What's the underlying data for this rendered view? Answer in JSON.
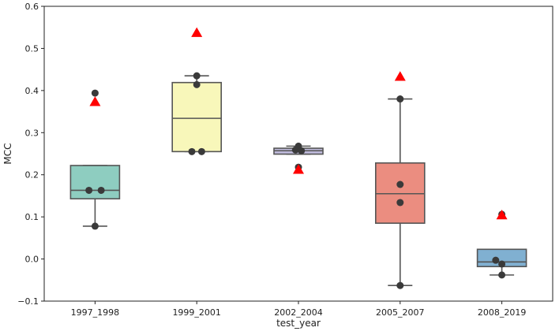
{
  "chart_data": {
    "type": "box",
    "xlabel": "test_year",
    "ylabel": "MCC",
    "ylim": [
      -0.1,
      0.6
    ],
    "yticks": [
      "−0.1",
      "0.0",
      "0.1",
      "0.2",
      "0.3",
      "0.4",
      "0.5",
      "0.6"
    ],
    "categories": [
      "1997_1998",
      "1999_2001",
      "2002_2004",
      "2005_2007",
      "2008_2019"
    ],
    "boxes": [
      {
        "category": "1997_1998",
        "color": "#8ecdc0",
        "whisker_low": 0.078,
        "q1": 0.143,
        "median": 0.163,
        "q3": 0.222,
        "whisker_high": 0.222,
        "points": [
          0.394,
          0.163,
          0.163,
          0.078
        ],
        "point_offsets": [
          0,
          -0.25,
          0.25,
          0
        ],
        "marker": 0.373
      },
      {
        "category": "1999_2001",
        "color": "#f8f7ba",
        "whisker_low": 0.255,
        "q1": 0.255,
        "median": 0.334,
        "q3": 0.419,
        "whisker_high": 0.435,
        "points": [
          0.435,
          0.414,
          0.255,
          0.255
        ],
        "point_offsets": [
          0,
          0,
          -0.2,
          0.2
        ],
        "marker": 0.537
      },
      {
        "category": "2002_2004",
        "color": "#bfbadb",
        "whisker_low": 0.249,
        "q1": 0.249,
        "median": 0.257,
        "q3": 0.263,
        "whisker_high": 0.268,
        "points": [
          0.268,
          0.259,
          0.257,
          0.218
        ],
        "point_offsets": [
          0,
          -0.12,
          0.12,
          0
        ],
        "marker": 0.212
      },
      {
        "category": "2005_2007",
        "color": "#eb8d80",
        "whisker_low": -0.063,
        "q1": 0.085,
        "median": 0.155,
        "q3": 0.228,
        "whisker_high": 0.38,
        "points": [
          0.38,
          0.177,
          0.134,
          -0.063
        ],
        "point_offsets": [
          0,
          0,
          0,
          0
        ],
        "marker": 0.433
      },
      {
        "category": "2008_2019",
        "color": "#80b0d1",
        "whisker_low": -0.038,
        "q1": -0.018,
        "median": -0.007,
        "q3": 0.023,
        "whisker_high": 0.023,
        "points": [
          0.106,
          -0.003,
          -0.012,
          -0.038
        ],
        "point_offsets": [
          0,
          -0.25,
          0,
          0
        ],
        "marker": 0.104
      }
    ],
    "colors": {
      "marker": "#ff0000",
      "point": "#3a3a3a",
      "line": "#555555",
      "axis": "#222222"
    },
    "grid": false
  }
}
